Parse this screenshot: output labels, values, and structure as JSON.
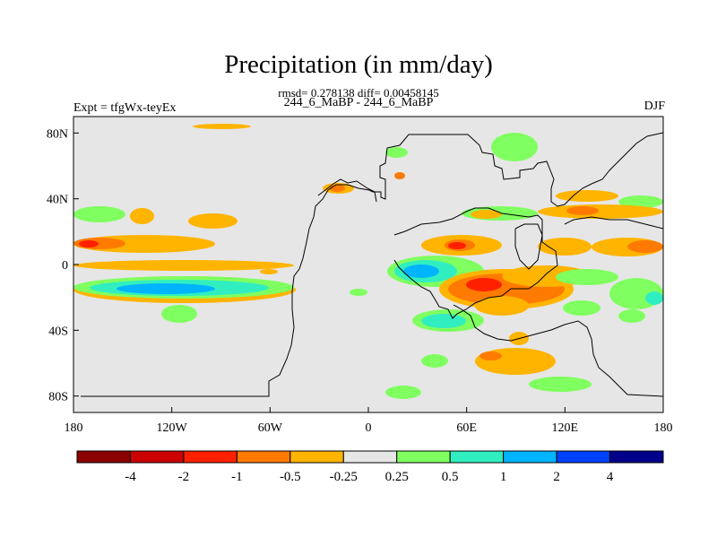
{
  "title": "Precipitation (in mm/day)",
  "stats_line": "rmsd= 0.278138 diff= 0.00458145",
  "subtitle": "244_6_MaBP - 244_6_MaBP",
  "left_label": "Expt = tfgWx-teyEx",
  "right_label": "DJF",
  "x_ticks": [
    {
      "label": "180",
      "lon": -180
    },
    {
      "label": "120W",
      "lon": -120
    },
    {
      "label": "60W",
      "lon": -60
    },
    {
      "label": "0",
      "lon": 0
    },
    {
      "label": "60E",
      "lon": 60
    },
    {
      "label": "120E",
      "lon": 120
    },
    {
      "label": "180",
      "lon": 180
    }
  ],
  "y_ticks": [
    {
      "label": "80N",
      "lat": 80
    },
    {
      "label": "40N",
      "lat": 40
    },
    {
      "label": "0",
      "lat": 0
    },
    {
      "label": "40S",
      "lat": -40
    },
    {
      "label": "80S",
      "lat": -80
    }
  ],
  "colorbar": {
    "colors": [
      "#8b0000",
      "#cc0000",
      "#ff2000",
      "#ff7a00",
      "#ffb400",
      "#e6e6e6",
      "#80ff60",
      "#30eec0",
      "#00b4ff",
      "#0040ff",
      "#00008b"
    ],
    "labels": [
      "-4",
      "-2",
      "-1",
      "-0.5",
      "-0.25",
      "0.25",
      "0.5",
      "1",
      "2",
      "4"
    ]
  },
  "map_background": "#e6e6e6"
}
